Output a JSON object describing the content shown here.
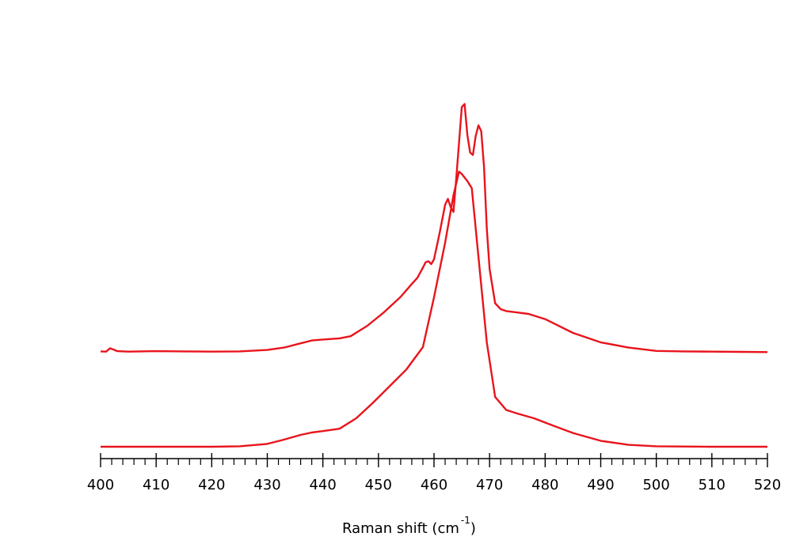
{
  "chart_data": {
    "type": "line",
    "xlabel": "Raman shift (cm",
    "xlabel_superscript": "-1",
    "xlabel_close": ")",
    "ylabel": "",
    "xlim": [
      400,
      520
    ],
    "ylim": [
      -0.05,
      1.75
    ],
    "x_major_ticks": [
      400,
      410,
      420,
      430,
      440,
      450,
      460,
      470,
      480,
      490,
      500,
      510,
      520
    ],
    "x_minor_step": 2,
    "y_axis_visible": false,
    "grid": false,
    "line_color": "#e8141c",
    "series": [
      {
        "points": [
          [
            400,
            0.402
          ],
          [
            401,
            0.401
          ],
          [
            401.7,
            0.415
          ],
          [
            402.3,
            0.41
          ],
          [
            403,
            0.403
          ],
          [
            405,
            0.401
          ],
          [
            410,
            0.403
          ],
          [
            415,
            0.402
          ],
          [
            420,
            0.401
          ],
          [
            425,
            0.402
          ],
          [
            430,
            0.408
          ],
          [
            433,
            0.418
          ],
          [
            436,
            0.436
          ],
          [
            438,
            0.448
          ],
          [
            440,
            0.452
          ],
          [
            443,
            0.457
          ],
          [
            445,
            0.466
          ],
          [
            448,
            0.51
          ],
          [
            451,
            0.567
          ],
          [
            454,
            0.632
          ],
          [
            456,
            0.686
          ],
          [
            457,
            0.712
          ],
          [
            458,
            0.755
          ],
          [
            458.5,
            0.778
          ],
          [
            459,
            0.782
          ],
          [
            459.5,
            0.77
          ],
          [
            460,
            0.79
          ],
          [
            461,
            0.9
          ],
          [
            462,
            1.02
          ],
          [
            462.5,
            1.045
          ],
          [
            463,
            1.01
          ],
          [
            463.5,
            0.99
          ],
          [
            464,
            1.13
          ],
          [
            465,
            1.432
          ],
          [
            465.5,
            1.445
          ],
          [
            466,
            1.315
          ],
          [
            466.5,
            1.24
          ],
          [
            467,
            1.23
          ],
          [
            467.5,
            1.31
          ],
          [
            468,
            1.355
          ],
          [
            468.5,
            1.33
          ],
          [
            469,
            1.18
          ],
          [
            469.5,
            0.92
          ],
          [
            470,
            0.75
          ],
          [
            471,
            0.605
          ],
          [
            472,
            0.58
          ],
          [
            473,
            0.572
          ],
          [
            475,
            0.566
          ],
          [
            477,
            0.56
          ],
          [
            480,
            0.538
          ],
          [
            485,
            0.48
          ],
          [
            490,
            0.44
          ],
          [
            495,
            0.418
          ],
          [
            500,
            0.404
          ],
          [
            505,
            0.402
          ],
          [
            510,
            0.401
          ],
          [
            515,
            0.4
          ],
          [
            520,
            0.399
          ]
        ]
      },
      {
        "points": [
          [
            400,
            0.0
          ],
          [
            410,
            0.0
          ],
          [
            420,
            0.0
          ],
          [
            425,
            0.002
          ],
          [
            430,
            0.012
          ],
          [
            433,
            0.03
          ],
          [
            436,
            0.05
          ],
          [
            438,
            0.06
          ],
          [
            440,
            0.066
          ],
          [
            443,
            0.076
          ],
          [
            446,
            0.12
          ],
          [
            449,
            0.185
          ],
          [
            452,
            0.255
          ],
          [
            455,
            0.325
          ],
          [
            458,
            0.42
          ],
          [
            460,
            0.63
          ],
          [
            462,
            0.86
          ],
          [
            463.5,
            1.06
          ],
          [
            464.5,
            1.16
          ],
          [
            465,
            1.15
          ],
          [
            466,
            1.12
          ],
          [
            466.8,
            1.09
          ],
          [
            468,
            0.8
          ],
          [
            469.5,
            0.44
          ],
          [
            471,
            0.21
          ],
          [
            473,
            0.155
          ],
          [
            475,
            0.14
          ],
          [
            478,
            0.12
          ],
          [
            481,
            0.093
          ],
          [
            485,
            0.058
          ],
          [
            490,
            0.025
          ],
          [
            495,
            0.008
          ],
          [
            500,
            0.002
          ],
          [
            510,
            0.0
          ],
          [
            520,
            0.0
          ]
        ]
      }
    ]
  }
}
